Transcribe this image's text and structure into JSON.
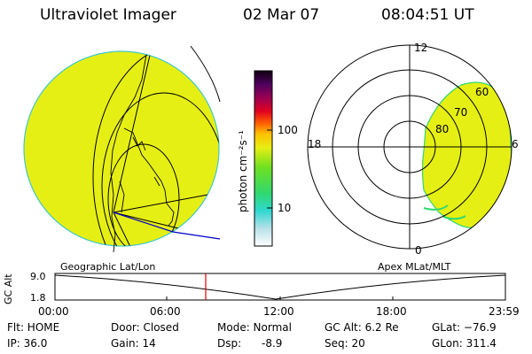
{
  "header": {
    "title": "Ultraviolet Imager",
    "date": "02 Mar 07",
    "time": "08:04:51 UT"
  },
  "colorbar": {
    "unit_label": "photon cm⁻²s⁻¹",
    "tick_100": "100",
    "tick_10": "10"
  },
  "geo_panel": {
    "label": "Geographic Lat/Lon",
    "fill_color": "#e6ef14"
  },
  "polar_panel": {
    "label": "Apex MLat/MLT",
    "mlt_top": "12",
    "mlt_left": "18",
    "mlt_right": "6",
    "mlt_bottom": "0",
    "lat_60": "60",
    "lat_70": "70",
    "lat_80": "80"
  },
  "altitude_plot": {
    "ylabel": "GC Alt",
    "y_top": "9.0",
    "y_bottom": "1.8",
    "x_ticks": [
      "00:00",
      "06:00",
      "12:00",
      "18:00",
      "23:59"
    ],
    "marker_color": "#e00000"
  },
  "status": {
    "flt": "Flt: HOME",
    "ip": "IP: 36.0",
    "door": "Door: Closed",
    "gain": "Gain: 14",
    "mode": "Mode: Normal",
    "dsp_label": "Dsp:",
    "dsp_value": "-8.9",
    "gcalt": "GC Alt: 6.2 Re",
    "seq": "Seq: 20",
    "glat": "GLat: −76.9",
    "glon": "GLon: 311.4"
  }
}
